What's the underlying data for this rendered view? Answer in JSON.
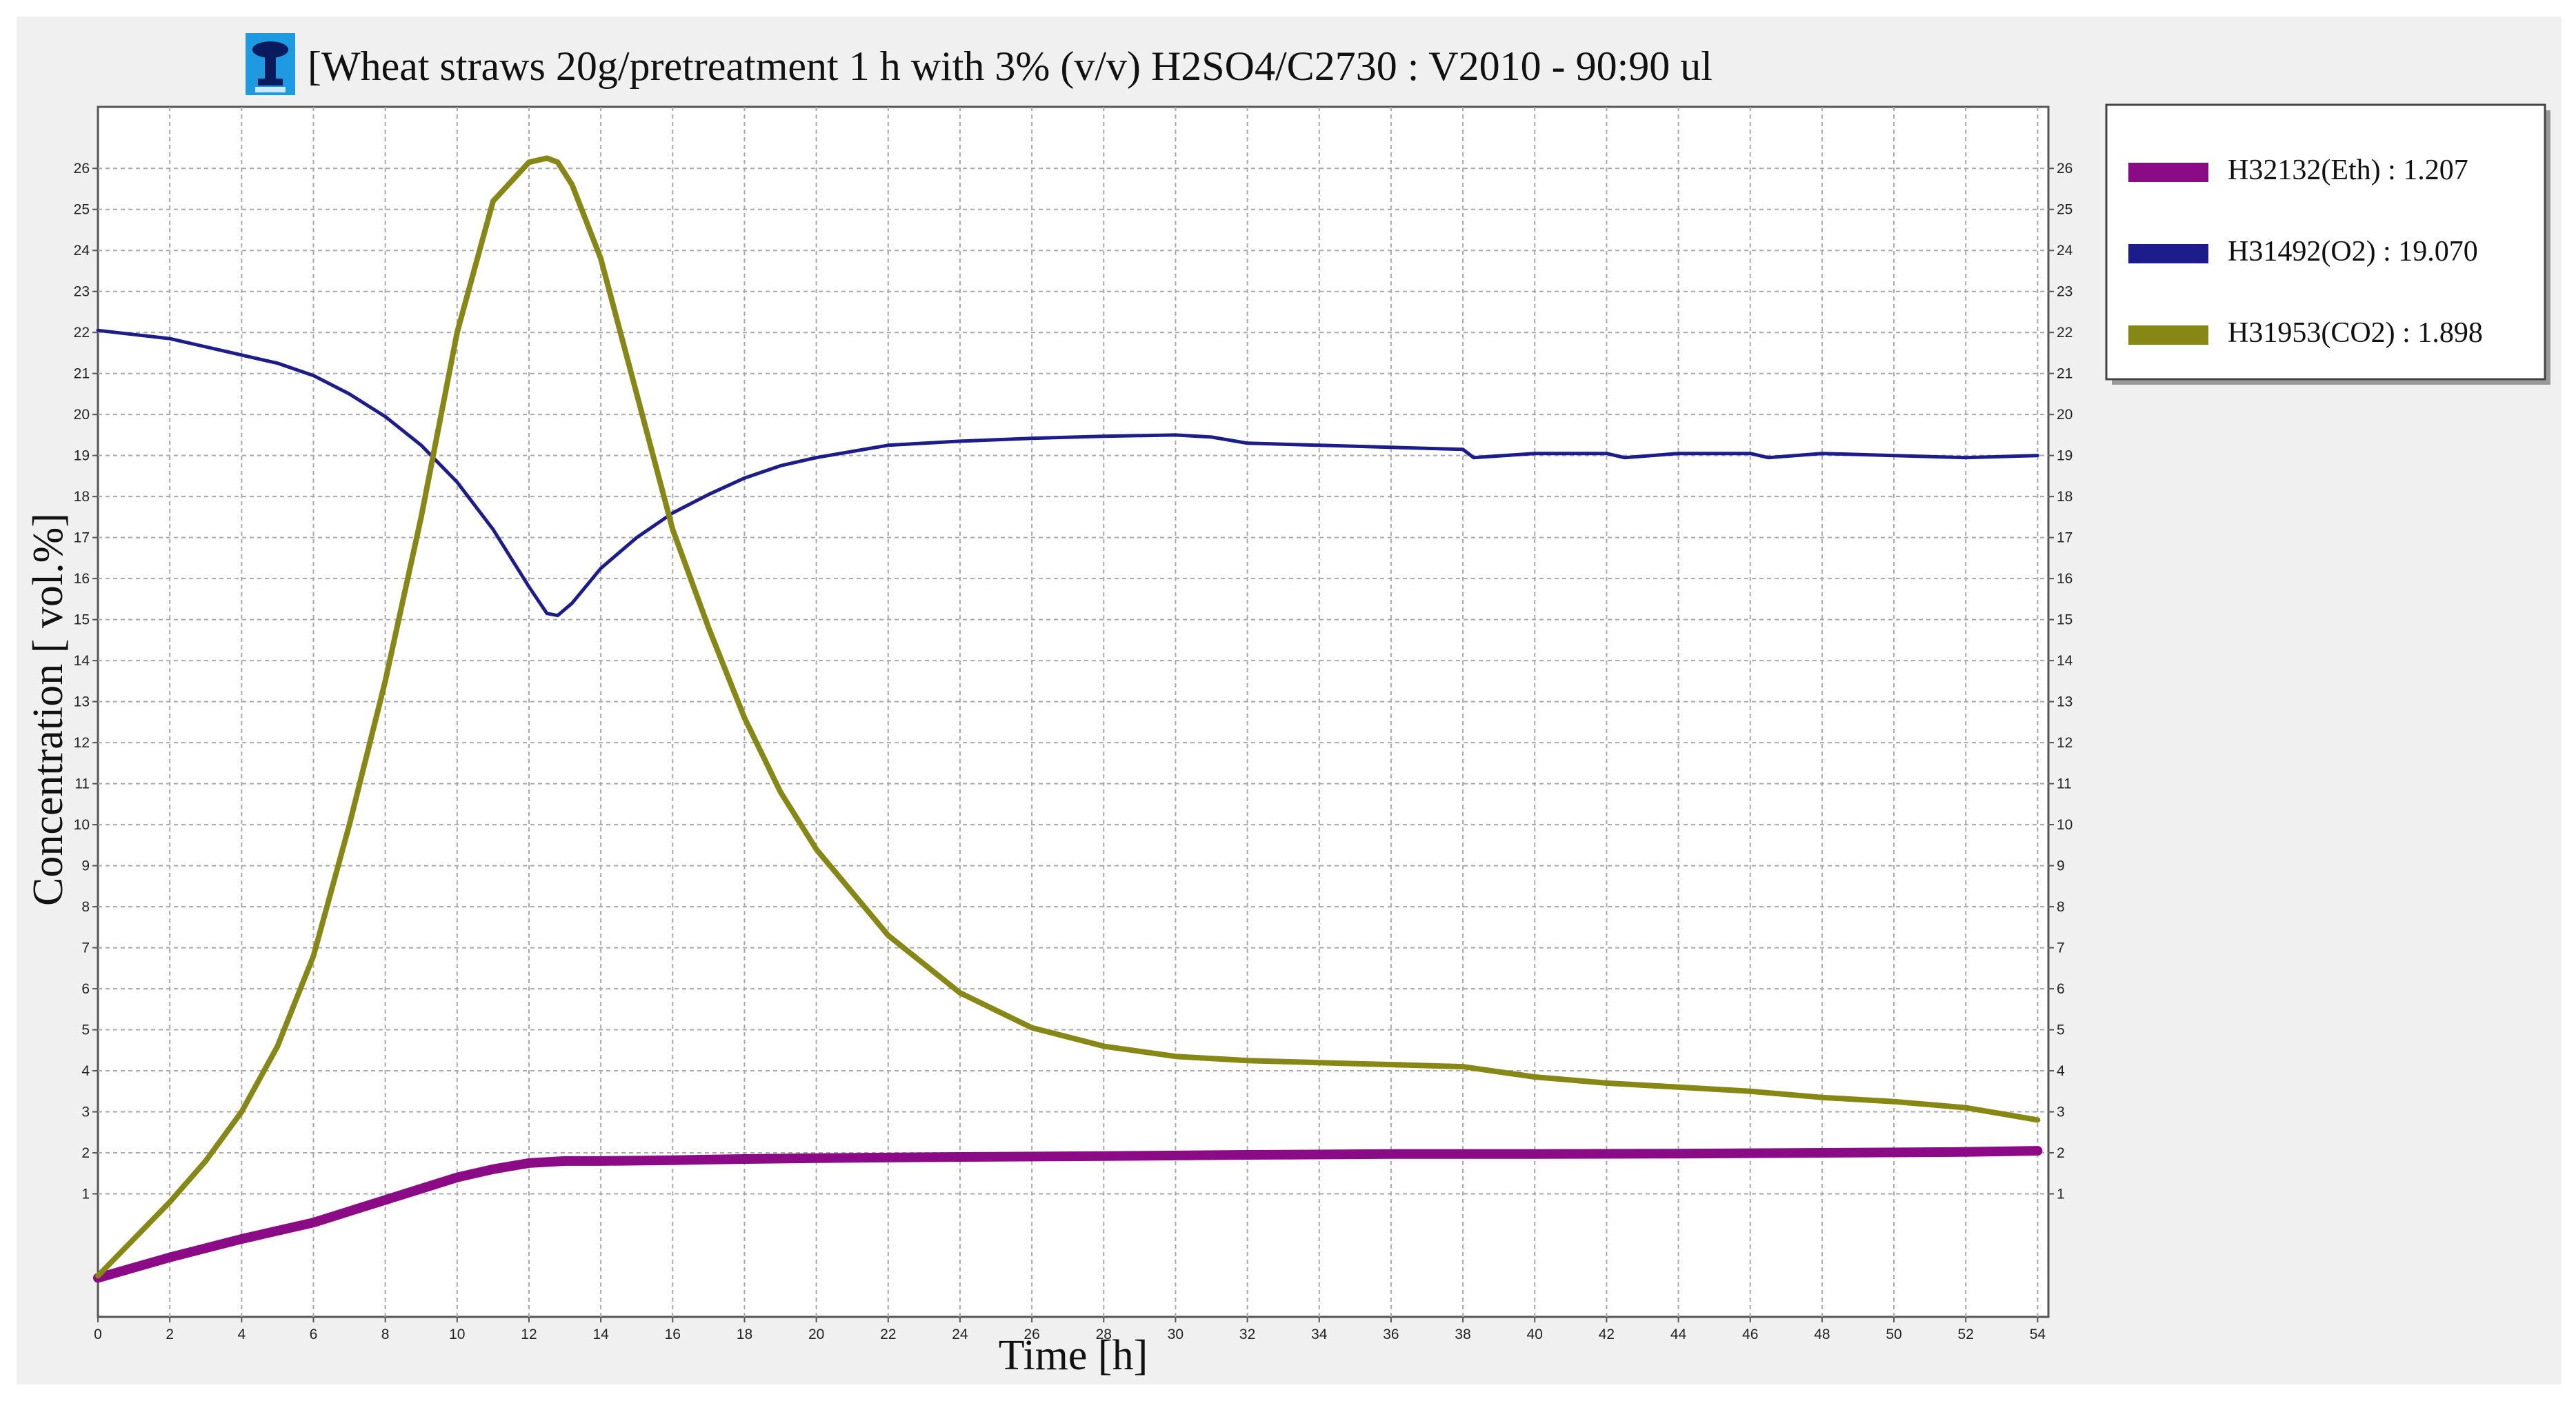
{
  "title": "[Wheat straws 20g/pretreatment 1 h with 3% (v/v) H2SO4/C2730 : V2010 - 90:90 ul",
  "app_icon": "fermentation-vessel-icon",
  "chart_data": {
    "type": "line",
    "title": "[Wheat straws 20g/pretreatment 1 h with 3% (v/v) H2SO4/C2730 : V2010 - 90:90 ul",
    "xlabel": "Time [h]",
    "ylabel": "Concentration [ vol.%]",
    "xlim": [
      0,
      54.3
    ],
    "ylim": [
      -2,
      27.5
    ],
    "grid": true,
    "legend_position": "right",
    "x_ticks": [
      0,
      2,
      4,
      6,
      8,
      10,
      12,
      14,
      16,
      18,
      20,
      22,
      24,
      26,
      28,
      30,
      32,
      34,
      36,
      38,
      40,
      42,
      44,
      46,
      48,
      50,
      52,
      54
    ],
    "y_ticks": [
      1,
      2,
      3,
      4,
      5,
      6,
      7,
      8,
      9,
      10,
      11,
      12,
      13,
      14,
      15,
      16,
      17,
      18,
      19,
      20,
      21,
      22,
      23,
      24,
      25,
      26
    ],
    "series": [
      {
        "name": "H32132(Eth) : 1.207",
        "color": "#8b0a86",
        "x": [
          0,
          2,
          4,
          6,
          8,
          10,
          11,
          12,
          13,
          14,
          16,
          18,
          20,
          24,
          28,
          32,
          36,
          40,
          44,
          48,
          52,
          54
        ],
        "y": [
          -1.05,
          -0.55,
          -0.1,
          0.3,
          0.85,
          1.4,
          1.6,
          1.75,
          1.8,
          1.8,
          1.82,
          1.85,
          1.87,
          1.9,
          1.92,
          1.95,
          1.97,
          1.97,
          1.98,
          2.0,
          2.02,
          2.05
        ]
      },
      {
        "name": "H31492(O2) : 19.070",
        "color": "#1c1c8a",
        "x": [
          0,
          1,
          2,
          3,
          4,
          5,
          6,
          7,
          8,
          9,
          10,
          11,
          12,
          12.5,
          12.8,
          13.2,
          14,
          15,
          16,
          17,
          18,
          19,
          20,
          22,
          24,
          26,
          28,
          30,
          31,
          32,
          34,
          36,
          38,
          38.3,
          40,
          42,
          42.5,
          44,
          46,
          46.5,
          48,
          50,
          52,
          54
        ],
        "y": [
          22.05,
          21.95,
          21.85,
          21.65,
          21.45,
          21.25,
          20.95,
          20.5,
          19.95,
          19.25,
          18.35,
          17.2,
          15.8,
          15.15,
          15.1,
          15.4,
          16.25,
          17.0,
          17.6,
          18.05,
          18.45,
          18.75,
          18.95,
          19.25,
          19.35,
          19.42,
          19.47,
          19.5,
          19.45,
          19.3,
          19.25,
          19.2,
          19.15,
          18.95,
          19.05,
          19.05,
          18.95,
          19.05,
          19.05,
          18.95,
          19.05,
          19.0,
          18.95,
          19.0
        ]
      },
      {
        "name": "H31953(CO2) : 1.898",
        "color": "#878716",
        "x": [
          0,
          1,
          2,
          3,
          4,
          5,
          6,
          7,
          8,
          9,
          10,
          11,
          12,
          12.5,
          12.8,
          13.2,
          14,
          15,
          16,
          17,
          18,
          19,
          20,
          22,
          24,
          26,
          28,
          30,
          32,
          34,
          36,
          38,
          40,
          42,
          44,
          46,
          48,
          50,
          52,
          54
        ],
        "y": [
          -1.0,
          -0.1,
          0.8,
          1.8,
          3.0,
          4.6,
          6.8,
          10.0,
          13.5,
          17.5,
          22.0,
          25.2,
          26.15,
          26.25,
          26.15,
          25.6,
          23.8,
          20.5,
          17.2,
          14.8,
          12.6,
          10.8,
          9.4,
          7.3,
          5.9,
          5.05,
          4.6,
          4.35,
          4.25,
          4.2,
          4.15,
          4.1,
          3.85,
          3.7,
          3.6,
          3.5,
          3.35,
          3.25,
          3.1,
          2.8
        ]
      }
    ]
  }
}
